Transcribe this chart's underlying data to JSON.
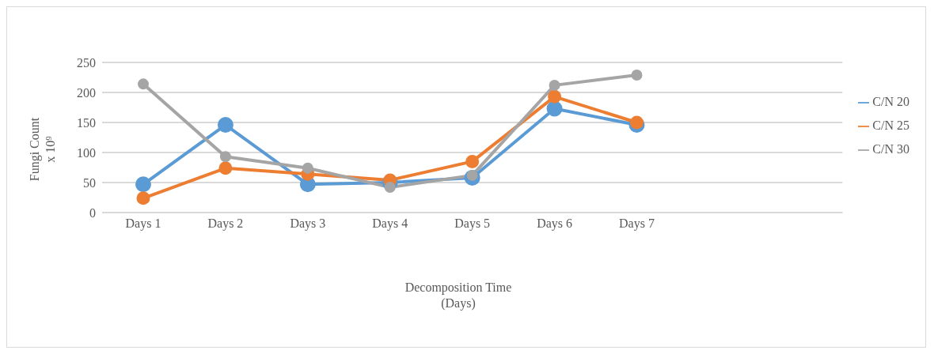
{
  "chart_data": {
    "type": "line",
    "xlabel": "Decomposition Time\n(Days)",
    "ylabel": "Fungi Count\nx 10⁹",
    "categories": [
      "Days 1",
      "Days 2",
      "Days 3",
      "Days 4",
      "Days 5",
      "Days 6",
      "Days 7",
      null,
      null
    ],
    "series": [
      {
        "name": "C/N 20",
        "color": "#5b9bd5",
        "values": [
          47,
          146,
          47,
          50,
          58,
          173,
          146,
          null,
          null
        ]
      },
      {
        "name": "C/N 25",
        "color": "#ed7d31",
        "values": [
          24,
          74,
          64,
          54,
          85,
          193,
          150,
          null,
          null
        ]
      },
      {
        "name": "C/N 30",
        "color": "#a5a5a5",
        "values": [
          214,
          93,
          74,
          42,
          62,
          212,
          229,
          null,
          null
        ]
      }
    ],
    "ylim": [
      0,
      250
    ],
    "yticks": [
      0,
      50,
      100,
      150,
      200,
      250
    ],
    "grid": "y",
    "legend": "right",
    "marker": "circle",
    "line_style": "solid"
  }
}
